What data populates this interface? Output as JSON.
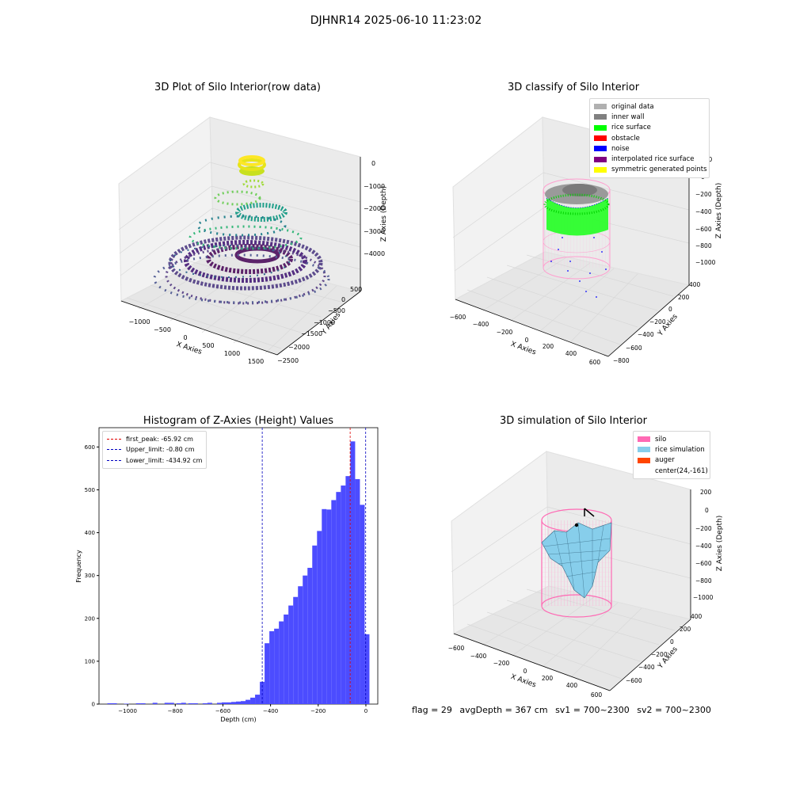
{
  "figure": {
    "title": "DJHNR14 2025-06-10 11:23:02",
    "footer": {
      "flag": "flag = 29",
      "avg_depth": "avgDepth = 367 cm",
      "sv1": "sv1 = 700~2300",
      "sv2": "sv2 = 700~2300"
    }
  },
  "chart_data": [
    {
      "type": "scatter",
      "title": "3D Plot of Silo Interior(row data)",
      "xlabel": "X Axies",
      "ylabel": "Y Axies",
      "zlabel": "Z Axies (Depth)",
      "x_ticks": [
        "−1000",
        "−500",
        "0",
        "500",
        "1000",
        "1500"
      ],
      "y_ticks": [
        "500",
        "0",
        "−500",
        "−1000",
        "−1500",
        "−2000",
        "−2500"
      ],
      "z_ticks": [
        "0",
        "−1000",
        "−2000",
        "−3000",
        "−4000"
      ],
      "colormap": "viridis",
      "zlim": [
        -4300,
        0
      ],
      "series": [
        {
          "values": [
            [
              0,
              0,
              -50
            ],
            [
              0,
              0,
              -2000
            ],
            [
              0,
              0,
              -2300
            ],
            [
              0,
              0,
              -3000
            ],
            [
              0,
              0,
              -3900
            ],
            [
              0,
              0,
              -4100
            ]
          ]
        }
      ]
    },
    {
      "type": "scatter",
      "title": "3D classify of Silo Interior",
      "xlabel": "X Axies",
      "ylabel": "Y Axies",
      "zlabel": "Z Axies (Depth)",
      "x_ticks": [
        "−600",
        "−400",
        "−200",
        "0",
        "200",
        "400",
        "600"
      ],
      "y_ticks": [
        "400",
        "200",
        "0",
        "−200",
        "−400",
        "−600",
        "−800"
      ],
      "z_ticks": [
        "200",
        "0",
        "−200",
        "−400",
        "−600",
        "−800",
        "−1000"
      ],
      "legend": [
        {
          "label": "original data",
          "color": "#b0b0b0"
        },
        {
          "label": "inner wall",
          "color": "#808080"
        },
        {
          "label": "rice surface",
          "color": "#00ff00"
        },
        {
          "label": "obstacle",
          "color": "#ff0000"
        },
        {
          "label": "noise",
          "color": "#0000ff"
        },
        {
          "label": "interpolated rice surface",
          "color": "#800080"
        },
        {
          "label": "symmetric generated points",
          "color": "#ffff00"
        }
      ]
    },
    {
      "type": "bar",
      "title": "Histogram of Z-Axies (Height) Values",
      "xlabel": "Depth (cm)",
      "ylabel": "Frequency",
      "xlim": [
        -1120,
        50
      ],
      "ylim": [
        0,
        645
      ],
      "x_ticks": [
        -1000,
        -800,
        -600,
        -400,
        -200,
        0
      ],
      "x_tick_labels": [
        "−1000",
        "−800",
        "−600",
        "−400",
        "−200",
        "0"
      ],
      "y_ticks": [
        0,
        100,
        200,
        300,
        400,
        500,
        600
      ],
      "bar_color": "#4c4cff",
      "bins": [
        {
          "x0": -1085,
          "x1": -1065,
          "count": 2
        },
        {
          "x0": -1065,
          "x1": -1045,
          "count": 2
        },
        {
          "x0": -1015,
          "x1": -995,
          "count": 1
        },
        {
          "x0": -965,
          "x1": -945,
          "count": 2
        },
        {
          "x0": -945,
          "x1": -925,
          "count": 2
        },
        {
          "x0": -895,
          "x1": -875,
          "count": 3
        },
        {
          "x0": -845,
          "x1": -825,
          "count": 3
        },
        {
          "x0": -825,
          "x1": -805,
          "count": 3
        },
        {
          "x0": -795,
          "x1": -775,
          "count": 2
        },
        {
          "x0": -775,
          "x1": -755,
          "count": 3
        },
        {
          "x0": -745,
          "x1": -725,
          "count": 2
        },
        {
          "x0": -725,
          "x1": -705,
          "count": 2
        },
        {
          "x0": -685,
          "x1": -665,
          "count": 2
        },
        {
          "x0": -665,
          "x1": -645,
          "count": 3
        },
        {
          "x0": -625,
          "x1": -605,
          "count": 3
        },
        {
          "x0": -605,
          "x1": -585,
          "count": 4
        },
        {
          "x0": -585,
          "x1": -565,
          "count": 4
        },
        {
          "x0": -565,
          "x1": -545,
          "count": 5
        },
        {
          "x0": -545,
          "x1": -525,
          "count": 6
        },
        {
          "x0": -525,
          "x1": -505,
          "count": 7
        },
        {
          "x0": -505,
          "x1": -485,
          "count": 10
        },
        {
          "x0": -485,
          "x1": -465,
          "count": 15
        },
        {
          "x0": -465,
          "x1": -445,
          "count": 22
        },
        {
          "x0": -445,
          "x1": -425,
          "count": 52
        },
        {
          "x0": -425,
          "x1": -405,
          "count": 142
        },
        {
          "x0": -405,
          "x1": -385,
          "count": 170
        },
        {
          "x0": -385,
          "x1": -365,
          "count": 176
        },
        {
          "x0": -365,
          "x1": -345,
          "count": 193
        },
        {
          "x0": -345,
          "x1": -325,
          "count": 209
        },
        {
          "x0": -325,
          "x1": -305,
          "count": 230
        },
        {
          "x0": -305,
          "x1": -285,
          "count": 250
        },
        {
          "x0": -285,
          "x1": -265,
          "count": 275
        },
        {
          "x0": -265,
          "x1": -245,
          "count": 300
        },
        {
          "x0": -245,
          "x1": -225,
          "count": 318
        },
        {
          "x0": -225,
          "x1": -205,
          "count": 370
        },
        {
          "x0": -205,
          "x1": -185,
          "count": 404
        },
        {
          "x0": -185,
          "x1": -165,
          "count": 455
        },
        {
          "x0": -165,
          "x1": -145,
          "count": 454
        },
        {
          "x0": -145,
          "x1": -125,
          "count": 476
        },
        {
          "x0": -125,
          "x1": -105,
          "count": 495
        },
        {
          "x0": -105,
          "x1": -85,
          "count": 510
        },
        {
          "x0": -85,
          "x1": -65,
          "count": 532
        },
        {
          "x0": -65,
          "x1": -45,
          "count": 613
        },
        {
          "x0": -45,
          "x1": -25,
          "count": 525
        },
        {
          "x0": -25,
          "x1": -5,
          "count": 465
        },
        {
          "x0": -5,
          "x1": 15,
          "count": 163
        }
      ],
      "vlines": [
        {
          "x": -65.92,
          "label": "first_peak: -65.92 cm",
          "color": "#e00000"
        },
        {
          "x": -0.8,
          "label": "Upper_limit: -0.80 cm",
          "color": "#0000c0"
        },
        {
          "x": -434.92,
          "label": "Lower_limit: -434.92 cm",
          "color": "#0000c0"
        }
      ]
    },
    {
      "type": "scatter",
      "title": "3D simulation of Silo Interior",
      "xlabel": "X Axies",
      "ylabel": "Y Axies",
      "zlabel": "Z Axies (Depth)",
      "x_ticks": [
        "−600",
        "−400",
        "−200",
        "0",
        "200",
        "400",
        "600"
      ],
      "y_ticks": [
        "400",
        "200",
        "0",
        "−200",
        "−400",
        "−600"
      ],
      "z_ticks": [
        "200",
        "0",
        "−200",
        "−400",
        "−600",
        "−800",
        "−1000"
      ],
      "legend": [
        {
          "label": "silo",
          "color": "#ff69b4"
        },
        {
          "label": "rice simulation",
          "color": "#87ceeb"
        },
        {
          "label": "auger",
          "color": "#ff4500"
        },
        {
          "label": "center(24,-161)",
          "color": ""
        }
      ]
    }
  ]
}
